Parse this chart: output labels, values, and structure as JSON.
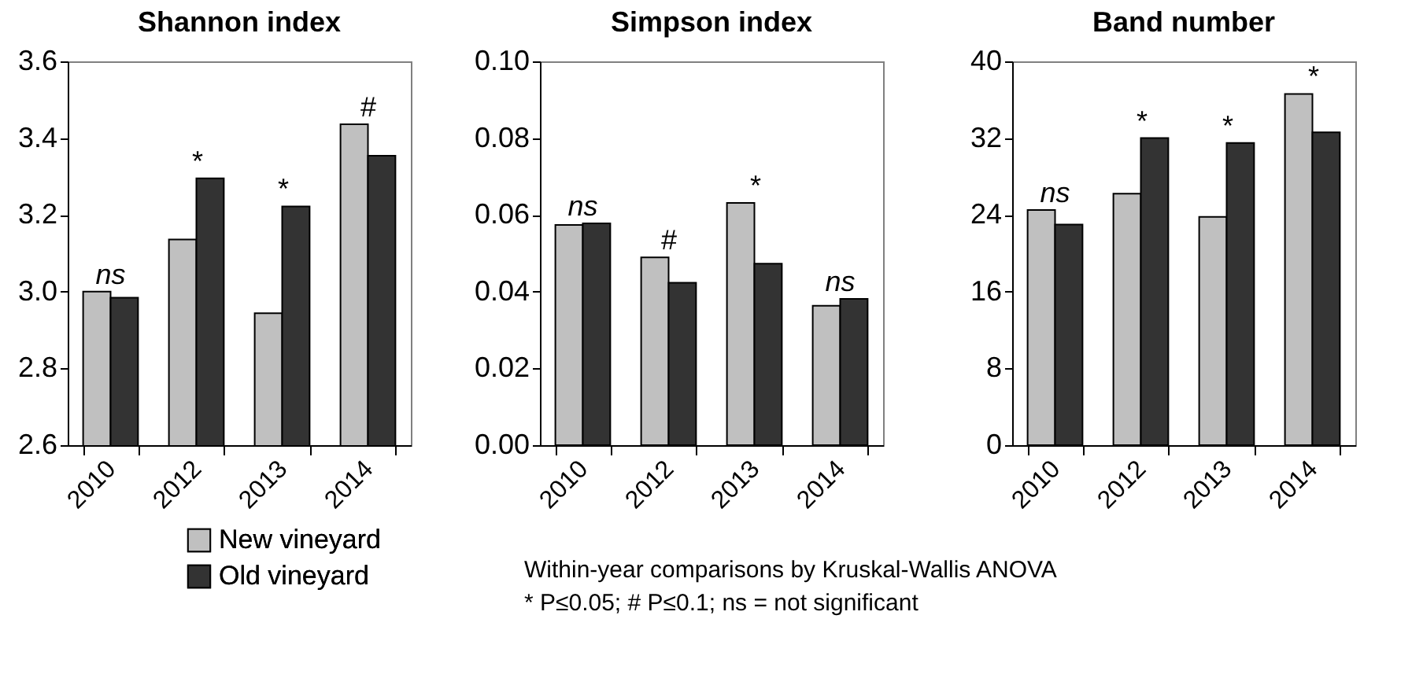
{
  "chart_data": [
    {
      "type": "bar",
      "title": "Shannon index",
      "categories": [
        "2010",
        "2012",
        "2013",
        "2014"
      ],
      "series": [
        {
          "name": "New vineyard",
          "color": "#c0c0c0",
          "values": [
            3.0,
            3.136,
            2.944,
            3.436
          ]
        },
        {
          "name": "Old vineyard",
          "color": "#333333",
          "values": [
            2.984,
            3.295,
            3.222,
            3.354
          ]
        }
      ],
      "ylim": [
        2.6,
        3.6
      ],
      "yticks": [
        {
          "value": 2.6,
          "label": "2.6"
        },
        {
          "value": 2.8,
          "label": "2.8"
        },
        {
          "value": 3.0,
          "label": "3.0"
        },
        {
          "value": 3.2,
          "label": "3.2"
        },
        {
          "value": 3.4,
          "label": "3.4"
        },
        {
          "value": 3.6,
          "label": "3.6"
        }
      ],
      "grid": false,
      "legend": "bottom",
      "annotations": [
        {
          "text": "ns",
          "x": "2010",
          "y": 3.0
        },
        {
          "text": "*",
          "x": "2012",
          "y": 3.295
        },
        {
          "text": "*",
          "x": "2013",
          "y": 3.222
        },
        {
          "text": "#",
          "x": "2014",
          "y": 3.436
        }
      ]
    },
    {
      "type": "bar",
      "title": "Simpson index",
      "categories": [
        "2010",
        "2012",
        "2013",
        "2014"
      ],
      "series": [
        {
          "color": "#c0c0c0",
          "values": [
            0.0574,
            0.0489,
            0.0631,
            0.0363
          ]
        },
        {
          "color": "#333333",
          "values": [
            0.0578,
            0.0423,
            0.0473,
            0.0381
          ]
        }
      ],
      "ylim": [
        0,
        0.1
      ],
      "yticks": [
        {
          "value": 0,
          "label": "0.00"
        },
        {
          "value": 0.02,
          "label": "0.02"
        },
        {
          "value": 0.04,
          "label": "0.04"
        },
        {
          "value": 0.06,
          "label": "0.06"
        },
        {
          "value": 0.08,
          "label": "0.08"
        },
        {
          "value": 0.1,
          "label": "0.10"
        }
      ],
      "grid": false,
      "legend": false,
      "annotations": [
        {
          "text": "ns",
          "x": "2010",
          "y": 0.0578
        },
        {
          "text": "#",
          "x": "2012",
          "y": 0.0489
        },
        {
          "text": "*",
          "x": "2013",
          "y": 0.0631
        },
        {
          "text": "ns",
          "x": "2014",
          "y": 0.0381
        },
        "Within-year comparisons by Kruskal-Wallis ANOVA",
        "* P≤0.05; # P≤0.1; ns = not significant"
      ]
    },
    {
      "type": "bar",
      "title": "Band number",
      "categories": [
        "2010",
        "2012",
        "2013",
        "2014"
      ],
      "series": [
        {
          "color": "#c0c0c0",
          "values": [
            24.5,
            26.2,
            23.8,
            36.6
          ]
        },
        {
          "color": "#333333",
          "values": [
            23.0,
            32.0,
            31.5,
            32.6
          ]
        }
      ],
      "ylim": [
        0,
        40
      ],
      "yticks": [
        0,
        8,
        16,
        24,
        32,
        40
      ],
      "grid": false,
      "legend": false,
      "annotations": [
        {
          "text": "ns",
          "x": "2010",
          "y": 24.5
        },
        {
          "text": "*",
          "x": "2012",
          "y": 32.0
        },
        {
          "text": "*",
          "x": "2013",
          "y": 31.5
        },
        {
          "text": "*",
          "x": "2014",
          "y": 36.6
        }
      ]
    }
  ]
}
